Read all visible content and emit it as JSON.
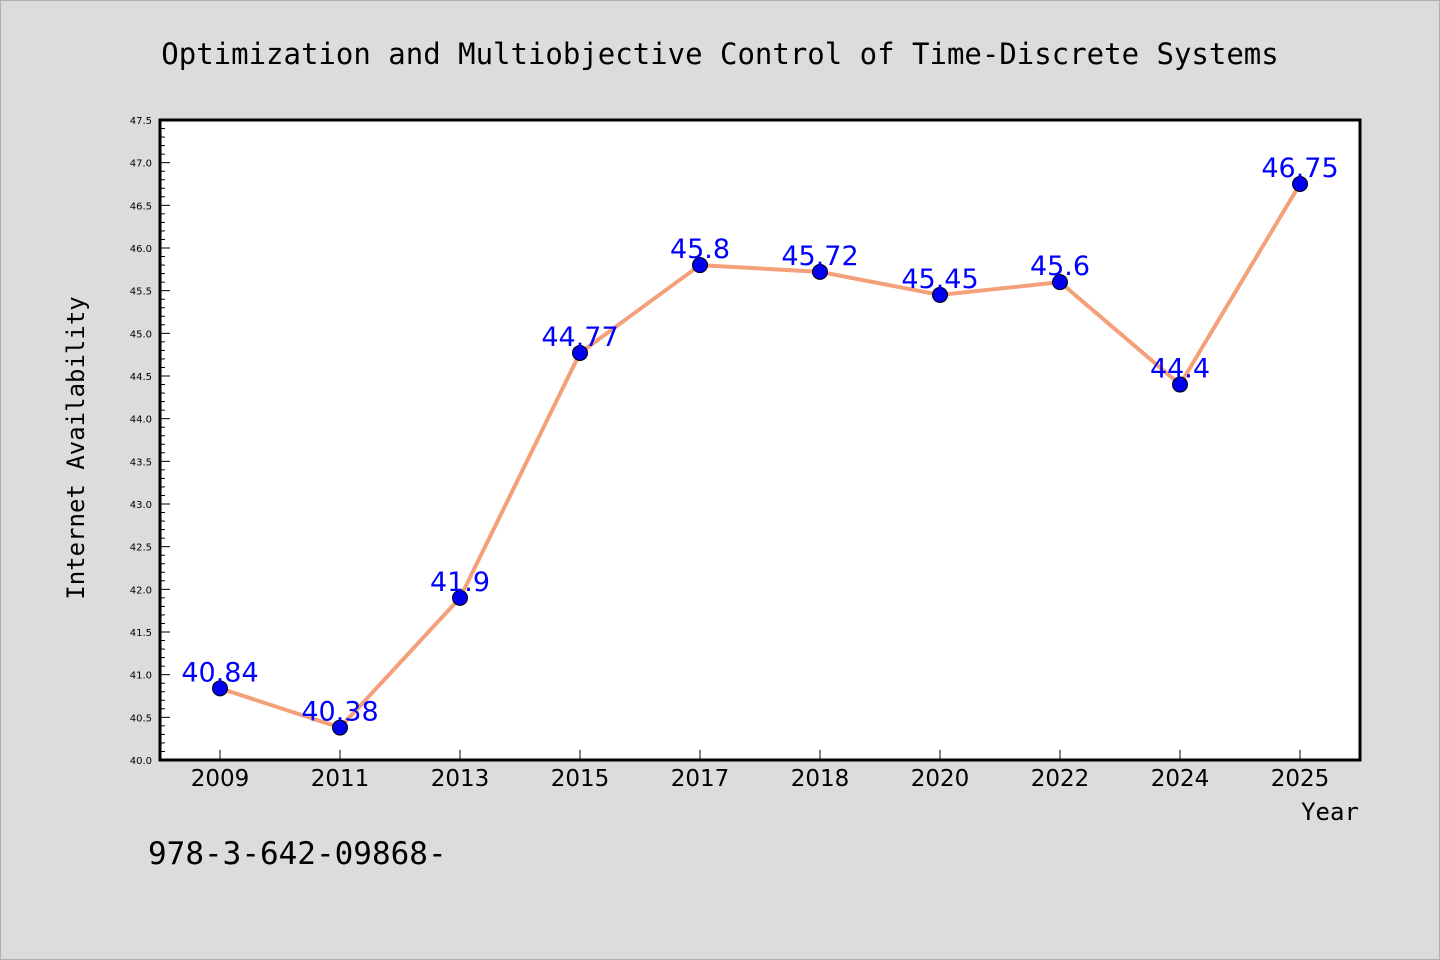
{
  "chart_data": {
    "type": "line",
    "title": "Optimization and Multiobjective Control of Time-Discrete Systems",
    "xlabel": "Year",
    "ylabel": "Internet Availability",
    "footnote": "978-3-642-09868-",
    "categories": [
      "2009",
      "2011",
      "2013",
      "2015",
      "2017",
      "2018",
      "2020",
      "2022",
      "2024",
      "2025"
    ],
    "series": [
      {
        "values": [
          40.84,
          40.38,
          41.9,
          44.77,
          45.8,
          45.72,
          45.45,
          45.6,
          44.4,
          46.75
        ],
        "labels": [
          "40.84",
          "40.38",
          "41.9",
          "44.77",
          "45.8",
          "45.72",
          "45.45",
          "45.6",
          "44.4",
          "46.75"
        ]
      }
    ],
    "ylim": [
      40.0,
      47.5
    ],
    "yticks": [
      "40.0",
      "40.5",
      "41.0",
      "41.5",
      "42.0",
      "42.5",
      "43.0",
      "43.5",
      "44.0",
      "44.5",
      "45.0",
      "45.5",
      "46.0",
      "46.5",
      "47.0",
      "47.5"
    ],
    "grid": false,
    "colors": {
      "line": "#f4a07a",
      "marker": "#0000ee",
      "data_label": "#0000ff",
      "background": "#dcdcdc",
      "plot_background": "#ffffff"
    }
  }
}
